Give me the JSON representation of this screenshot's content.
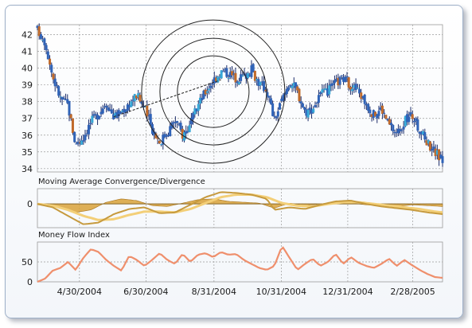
{
  "colors": {
    "grid": "#9a9a9a",
    "candle_body": "#2f63b8",
    "candle_up": "#36a8d8",
    "candle_down": "#c06a2a",
    "wick": "#1c2d6a",
    "macd_area": "#d9a238",
    "macd_line": "#c69a3e",
    "signal_line": "#f3cf78",
    "mfi_line": "#ef8f6c",
    "frame_border": "#9eb0c8"
  },
  "chart_data": [
    {
      "type": "candlestick",
      "title": "",
      "y_ticks": [
        34,
        35,
        36,
        37,
        38,
        39,
        40,
        41,
        42
      ],
      "ylim": [
        33.8,
        42.6
      ],
      "x_tick_labels": [
        "4/30/2004",
        "6/30/2004",
        "8/31/2004",
        "10/31/2004",
        "12/31/2004",
        "2/28/2005"
      ],
      "x_tick_weeks": [
        5.5,
        14.2,
        23.1,
        31.9,
        40.6,
        49.1
      ],
      "n_weeks": 53,
      "close_path": {
        "weeks": [
          0,
          1,
          2,
          3,
          4,
          5,
          6,
          7,
          8,
          9,
          10,
          11,
          12,
          13,
          14,
          15,
          16,
          17,
          18,
          19,
          20,
          21,
          22,
          23,
          24,
          25,
          26,
          27,
          28,
          29,
          30,
          31,
          32,
          33,
          34,
          35,
          36,
          37,
          38,
          39,
          40,
          41,
          42,
          43,
          44,
          45,
          46,
          47,
          48,
          49,
          50,
          51,
          52,
          53
        ],
        "values": [
          42.3,
          41.6,
          39.5,
          38.2,
          37.8,
          35.4,
          35.9,
          36.8,
          37.3,
          38.0,
          37.1,
          37.4,
          37.9,
          38.4,
          37.6,
          36.4,
          35.6,
          36.2,
          36.9,
          36.0,
          36.6,
          37.8,
          38.6,
          39.3,
          39.8,
          39.7,
          39.4,
          39.5,
          39.9,
          39.1,
          38.7,
          36.9,
          38.1,
          39.2,
          38.6,
          37.4,
          37.6,
          38.4,
          38.6,
          39.1,
          39.4,
          39.0,
          38.6,
          37.9,
          37.2,
          37.6,
          36.6,
          36.1,
          36.8,
          37.2,
          36.3,
          35.6,
          35.0,
          34.5
        ]
      },
      "drawn_annotations": [
        {
          "type": "trend_line",
          "from": [
            "week 10",
            37.1
          ],
          "to": [
            "week 24",
            39.3
          ]
        },
        {
          "type": "concentric_circles",
          "center": [
            "week 23",
            38.6
          ],
          "count": 3
        }
      ]
    },
    {
      "type": "area",
      "title": "Moving Average Convergence/Divergence",
      "y_ticks": [
        0
      ],
      "ylim": [
        -1.4,
        0.9
      ],
      "series": [
        {
          "role": "histogram",
          "weeks": [
            0,
            3,
            5,
            7,
            9,
            11,
            13,
            15,
            17,
            19,
            21,
            23,
            25,
            27,
            29,
            31,
            33,
            35,
            37,
            39,
            41,
            43,
            45,
            47,
            49,
            51,
            53
          ],
          "values": [
            0.0,
            -0.2,
            -0.5,
            -0.35,
            0.1,
            0.3,
            0.2,
            -0.1,
            -0.15,
            0.05,
            0.25,
            0.3,
            0.15,
            0.1,
            0.05,
            -0.25,
            0.05,
            -0.1,
            0.0,
            0.1,
            0.05,
            -0.05,
            -0.1,
            -0.15,
            -0.05,
            -0.1,
            -0.15
          ]
        },
        {
          "role": "macd",
          "weeks": [
            0,
            2,
            4,
            6,
            8,
            10,
            12,
            14,
            16,
            18,
            20,
            22,
            24,
            26,
            28,
            30,
            31,
            33,
            35,
            37,
            39,
            41,
            43,
            45,
            47,
            49,
            51,
            53
          ],
          "values": [
            0.0,
            -0.2,
            -0.7,
            -1.2,
            -1.1,
            -0.6,
            -0.3,
            -0.2,
            -0.55,
            -0.5,
            -0.05,
            0.4,
            0.7,
            0.65,
            0.55,
            0.3,
            -0.35,
            -0.2,
            -0.3,
            -0.05,
            0.15,
            0.2,
            0.0,
            -0.15,
            -0.25,
            -0.35,
            -0.5,
            -0.6
          ]
        },
        {
          "role": "signal",
          "weeks": [
            0,
            2,
            4,
            6,
            8,
            10,
            12,
            14,
            16,
            18,
            20,
            22,
            24,
            26,
            28,
            30,
            32,
            34,
            36,
            38,
            40,
            42,
            44,
            46,
            48,
            50,
            52,
            53
          ],
          "values": [
            0.0,
            -0.1,
            -0.35,
            -0.7,
            -0.95,
            -0.9,
            -0.65,
            -0.45,
            -0.45,
            -0.5,
            -0.3,
            0.05,
            0.4,
            0.55,
            0.55,
            0.4,
            0.05,
            -0.1,
            -0.15,
            0.0,
            0.1,
            0.1,
            0.0,
            -0.1,
            -0.2,
            -0.3,
            -0.45,
            -0.5
          ]
        }
      ]
    },
    {
      "type": "line",
      "title": "Money Flow Index",
      "y_ticks": [
        0,
        50
      ],
      "ylim": [
        0,
        100
      ],
      "series": [
        {
          "role": "mfi",
          "weeks": [
            0,
            1,
            2,
            3,
            4,
            5,
            6,
            7,
            8,
            9,
            10,
            11,
            12,
            13,
            14,
            15,
            16,
            17,
            18,
            19,
            20,
            21,
            22,
            23,
            24,
            25,
            26,
            27,
            28,
            29,
            30,
            31,
            32,
            33,
            34,
            35,
            36,
            37,
            38,
            39,
            40,
            41,
            42,
            43,
            44,
            45,
            46,
            47,
            48,
            49,
            50,
            51,
            52,
            53
          ],
          "values": [
            0,
            8,
            28,
            35,
            50,
            30,
            60,
            82,
            75,
            55,
            40,
            28,
            65,
            55,
            40,
            55,
            72,
            55,
            45,
            70,
            50,
            68,
            72,
            62,
            75,
            68,
            70,
            55,
            45,
            35,
            30,
            40,
            90,
            60,
            30,
            45,
            58,
            40,
            50,
            70,
            45,
            62,
            48,
            40,
            35,
            45,
            58,
            40,
            55,
            42,
            30,
            20,
            12,
            10
          ]
        }
      ]
    }
  ]
}
